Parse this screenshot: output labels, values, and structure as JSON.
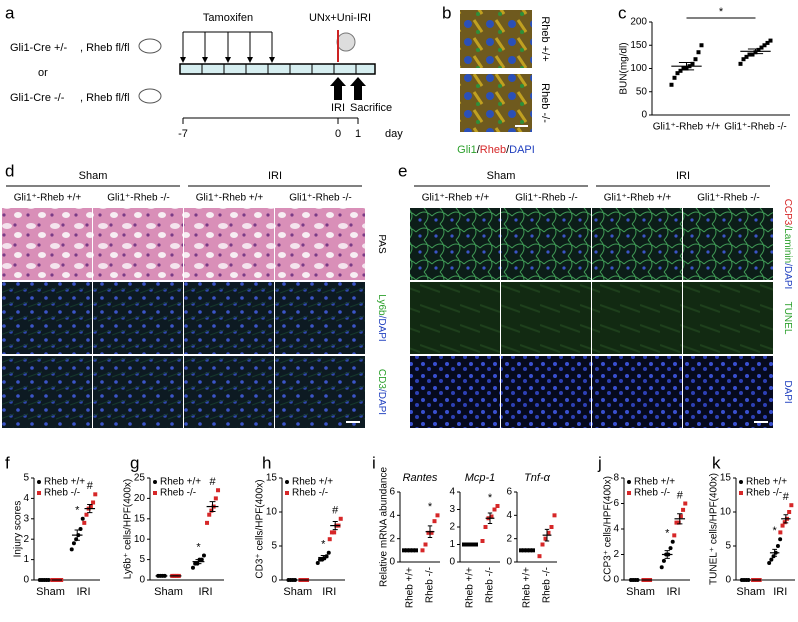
{
  "panel_letters": [
    "a",
    "b",
    "c",
    "d",
    "e",
    "f",
    "g",
    "h",
    "i",
    "j",
    "k"
  ],
  "scheme": {
    "genotypes": [
      "Gli1-Cre +/-",
      "Gli1-Cre -/-"
    ],
    "flox": ", Rheb fl/fl",
    "or": "or",
    "treatment": "Tamoxifen",
    "surgery": "UNx+Uni-IRI",
    "events": [
      "IRI",
      "Sacrifice"
    ],
    "days": [
      "-7",
      "0",
      "1"
    ],
    "unit": "day"
  },
  "b": {
    "rows": [
      "Rheb +/+",
      "Rheb -/-"
    ],
    "caption": {
      "parts": [
        "Gli1",
        "/",
        "Rheb",
        "/",
        "DAPI"
      ],
      "colors": [
        "#2ca02c",
        "#000000",
        "#d62728",
        "#000000",
        "#1f3fbf"
      ]
    }
  },
  "d": {
    "groups": [
      "Sham",
      "IRI"
    ],
    "columns": [
      "Gli1⁺-Rheb +/+",
      "Gli1⁺-Rheb -/-",
      "Gli1⁺-Rheb +/+",
      "Gli1⁺-Rheb -/-"
    ],
    "rows": [
      {
        "parts": [
          "PAS"
        ],
        "colors": [
          "#000000"
        ]
      },
      {
        "parts": [
          "Ly6b",
          "/DAPI"
        ],
        "colors": [
          "#2ca02c",
          "#1f3fbf"
        ]
      },
      {
        "parts": [
          "CD3",
          "/DAPI"
        ],
        "colors": [
          "#2ca02c",
          "#1f3fbf"
        ]
      }
    ]
  },
  "e": {
    "groups": [
      "Sham",
      "IRI"
    ],
    "columns": [
      "Gli1⁺-Rheb +/+",
      "Gli1⁺-Rheb -/-",
      "Gli1⁺-Rheb +/+",
      "Gli1⁺-Rheb -/-"
    ],
    "rows": [
      {
        "parts": [
          "CCP3",
          "/Laminin",
          "/DAPI"
        ],
        "colors": [
          "#d62728",
          "#2ca02c",
          "#1f3fbf"
        ]
      },
      {
        "parts": [
          "TUNEL"
        ],
        "colors": [
          "#2ca02c"
        ]
      },
      {
        "parts": [
          "DAPI"
        ],
        "colors": [
          "#1f3fbf"
        ]
      }
    ]
  },
  "chart_data": [
    {
      "type": "dot",
      "ylabel": "BUN(mg/dl)",
      "categories": [
        "Gli1⁺-Rheb +/+",
        "Gli1⁺-Rheb -/-"
      ],
      "ylim": [
        0,
        200
      ],
      "yticks": [
        0,
        50,
        100,
        150,
        200
      ],
      "significance": "*",
      "series": [
        {
          "colors": [
            "#000000",
            "#000000"
          ],
          "marker": "square",
          "values": [
            [
              65,
              80,
              90,
              95,
              100,
              100,
              105,
              110,
              120,
              135,
              150
            ],
            [
              110,
              120,
              125,
              130,
              130,
              135,
              140,
              145,
              150,
              155,
              160
            ]
          ],
          "means": [
            105,
            137
          ],
          "errors": [
            8,
            5
          ]
        }
      ]
    },
    {
      "type": "dot",
      "ylabel": "Injury scores",
      "categories": [
        "Sham",
        "IRI"
      ],
      "ylim": [
        0,
        5
      ],
      "yticks": [
        0,
        1,
        2,
        3,
        4,
        5
      ],
      "series": [
        {
          "name": "Rheb +/+",
          "color": "#000000",
          "marker": "circle",
          "values": [
            [
              0,
              0,
              0,
              0,
              0
            ],
            [
              1.5,
              1.8,
              2,
              2.2,
              2.5,
              3
            ]
          ],
          "means": [
            0,
            2.2
          ],
          "errors": [
            0,
            0.25
          ],
          "annotations": [
            null,
            "*"
          ]
        },
        {
          "name": "Rheb -/-",
          "color": "#d62728",
          "marker": "square",
          "values": [
            [
              0,
              0,
              0,
              0,
              0
            ],
            [
              2.8,
              3.2,
              3.5,
              3.6,
              3.8,
              4.2
            ]
          ],
          "means": [
            0,
            3.5
          ],
          "errors": [
            0,
            0.2
          ],
          "annotations": [
            null,
            "#"
          ]
        }
      ]
    },
    {
      "type": "dot",
      "ylabel": "Ly6b⁺ cells/HPF(400x)",
      "categories": [
        "Sham",
        "IRI"
      ],
      "ylim": [
        0,
        25
      ],
      "yticks": [
        0,
        5,
        10,
        15,
        20,
        25
      ],
      "series": [
        {
          "name": "Rheb +/+",
          "color": "#000000",
          "marker": "circle",
          "values": [
            [
              1,
              1,
              1,
              1
            ],
            [
              3,
              4,
              4,
              5,
              5,
              6
            ]
          ],
          "means": [
            1,
            4.5
          ],
          "errors": [
            0,
            0.5
          ],
          "annotations": [
            null,
            "*"
          ]
        },
        {
          "name": "Rheb -/-",
          "color": "#d62728",
          "marker": "square",
          "values": [
            [
              1,
              1,
              1,
              1
            ],
            [
              14,
              16,
              17,
              18,
              20,
              22
            ]
          ],
          "means": [
            1,
            18
          ],
          "errors": [
            0,
            1.2
          ],
          "annotations": [
            null,
            "#"
          ]
        }
      ]
    },
    {
      "type": "dot",
      "ylabel": "CD3⁺ cells/HPF(400x)",
      "categories": [
        "Sham",
        "IRI"
      ],
      "ylim": [
        0,
        15
      ],
      "yticks": [
        0,
        5,
        10,
        15
      ],
      "series": [
        {
          "name": "Rheb +/+",
          "color": "#000000",
          "marker": "circle",
          "values": [
            [
              0,
              0,
              0,
              0
            ],
            [
              2.5,
              3,
              3,
              3.2,
              3.5,
              4
            ]
          ],
          "means": [
            0,
            3.3
          ],
          "errors": [
            0,
            0.3
          ],
          "annotations": [
            null,
            "*"
          ]
        },
        {
          "name": "Rheb -/-",
          "color": "#d62728",
          "marker": "square",
          "values": [
            [
              0,
              0,
              0,
              0
            ],
            [
              6,
              7,
              7,
              8,
              8,
              9
            ]
          ],
          "means": [
            0,
            8
          ],
          "errors": [
            0,
            0.6
          ],
          "annotations": [
            null,
            "#"
          ]
        }
      ]
    },
    {
      "type": "dot",
      "title": "Rantes",
      "ylabel": "Relative mRNA abundance",
      "categories": [
        "Rheb +/+",
        "Rheb -/-"
      ],
      "x_label_rotation": 90,
      "ylim": [
        0,
        6
      ],
      "yticks": [
        0,
        2,
        4,
        6
      ],
      "series": [
        {
          "colors": [
            "#000000",
            "#d62728"
          ],
          "marker": "square",
          "values": [
            [
              1,
              1,
              1,
              1,
              1
            ],
            [
              1,
              1.5,
              2.5,
              2.5,
              3.5,
              4
            ]
          ],
          "means": [
            1,
            2.6
          ],
          "errors": [
            0,
            0.5
          ],
          "annotations": [
            null,
            "*"
          ]
        }
      ]
    },
    {
      "type": "dot",
      "title": "Mcp-1",
      "categories": [
        "Rheb +/+",
        "Rheb -/-"
      ],
      "x_label_rotation": 90,
      "ylim": [
        0,
        4
      ],
      "yticks": [
        0,
        1,
        2,
        3,
        4
      ],
      "series": [
        {
          "colors": [
            "#000000",
            "#d62728"
          ],
          "marker": "square",
          "values": [
            [
              1,
              1,
              1,
              1,
              1
            ],
            [
              1.2,
              2,
              2.5,
              2.6,
              3,
              3.2
            ]
          ],
          "means": [
            1,
            2.5
          ],
          "errors": [
            0,
            0.3
          ],
          "annotations": [
            null,
            "*"
          ]
        }
      ]
    },
    {
      "type": "dot",
      "title": "Tnf-α",
      "categories": [
        "Rheb +/+",
        "Rheb -/-"
      ],
      "x_label_rotation": 90,
      "ylim": [
        0,
        6
      ],
      "yticks": [
        0,
        2,
        4,
        6
      ],
      "series": [
        {
          "colors": [
            "#000000",
            "#d62728"
          ],
          "marker": "square",
          "values": [
            [
              1,
              1,
              1,
              1,
              1
            ],
            [
              0.5,
              1.5,
              2,
              2.5,
              3,
              4
            ]
          ],
          "means": [
            1,
            2.3
          ],
          "errors": [
            0,
            0.5
          ]
        }
      ]
    },
    {
      "type": "dot",
      "ylabel": "CCP3⁺ cells/HPF(400x)",
      "categories": [
        "Sham",
        "IRI"
      ],
      "ylim": [
        0,
        8
      ],
      "yticks": [
        0,
        2,
        4,
        6,
        8
      ],
      "series": [
        {
          "name": "Rheb +/+",
          "color": "#000000",
          "marker": "circle",
          "values": [
            [
              0,
              0,
              0,
              0
            ],
            [
              1,
              1.5,
              2,
              2,
              2.5,
              3
            ]
          ],
          "means": [
            0,
            2
          ],
          "errors": [
            0,
            0.3
          ],
          "annotations": [
            null,
            "*"
          ]
        },
        {
          "name": "Rheb -/-",
          "color": "#d62728",
          "marker": "square",
          "values": [
            [
              0,
              0,
              0,
              0
            ],
            [
              3.5,
              4.5,
              4.5,
              5,
              5.5,
              6
            ]
          ],
          "means": [
            0,
            4.8
          ],
          "errors": [
            0,
            0.4
          ],
          "annotations": [
            null,
            "#"
          ]
        }
      ]
    },
    {
      "type": "dot",
      "ylabel": "TUNEL⁺ cells/HPF(400x)",
      "categories": [
        "Sham",
        "IRI"
      ],
      "ylim": [
        0,
        15
      ],
      "yticks": [
        0,
        5,
        10,
        15
      ],
      "series": [
        {
          "name": "Rheb +/+",
          "color": "#000000",
          "marker": "circle",
          "values": [
            [
              0,
              0,
              0,
              0
            ],
            [
              2.5,
              3,
              3.5,
              4,
              5,
              6
            ]
          ],
          "means": [
            0,
            4
          ],
          "errors": [
            0,
            0.5
          ],
          "annotations": [
            null,
            "*"
          ]
        },
        {
          "name": "Rheb -/-",
          "color": "#d62728",
          "marker": "square",
          "values": [
            [
              0,
              0,
              0,
              0
            ],
            [
              7,
              8,
              8.5,
              9,
              10,
              11
            ]
          ],
          "means": [
            0,
            9
          ],
          "errors": [
            0,
            0.6
          ],
          "annotations": [
            null,
            "#"
          ]
        }
      ]
    }
  ]
}
